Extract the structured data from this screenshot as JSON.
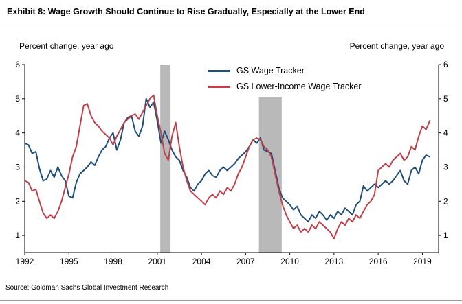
{
  "header": {
    "title": "Exhibit 8: Wage Growth Should Continue to Rise Gradually, Especially at the Lower End"
  },
  "footer": {
    "source": "Source: Goldman Sachs Global Investment Research"
  },
  "chart_data": {
    "type": "line",
    "title": "Exhibit 8: Wage Growth Should Continue to Rise Gradually, Especially at the Lower End",
    "ylabel_left": "Percent change, year ago",
    "ylabel_right": "Percent change, year ago",
    "x_start": 1992.0,
    "x_step": 0.25,
    "xlim": [
      1992,
      2020.1
    ],
    "ylim": [
      0.5,
      6
    ],
    "xticks": [
      1992,
      1995,
      1998,
      2001,
      2004,
      2007,
      2010,
      2013,
      2016,
      2019
    ],
    "yticks": [
      1,
      2,
      3,
      4,
      5,
      6
    ],
    "grid": false,
    "legend_position": "top-center",
    "recession_color": "#b9b9b9",
    "recessions": [
      {
        "x0": 2001.2,
        "x1": 2001.9,
        "ytop": 6.0
      },
      {
        "x0": 2007.9,
        "x1": 2009.45,
        "ytop": 5.05
      }
    ],
    "series": [
      {
        "name": "GS Wage Tracker",
        "color": "#1f4e79",
        "values": [
          3.7,
          3.65,
          3.4,
          3.45,
          2.95,
          2.6,
          2.65,
          2.9,
          2.7,
          3.0,
          2.75,
          2.6,
          2.15,
          2.1,
          2.55,
          2.8,
          2.9,
          3.0,
          3.15,
          3.05,
          3.3,
          3.5,
          3.6,
          3.85,
          4.0,
          3.5,
          3.8,
          4.3,
          4.45,
          4.5,
          4.05,
          3.9,
          4.2,
          5.0,
          4.75,
          4.9,
          4.35,
          3.7,
          4.05,
          3.8,
          3.5,
          3.3,
          3.2,
          2.9,
          2.7,
          2.4,
          2.3,
          2.5,
          2.6,
          2.8,
          2.9,
          2.75,
          2.7,
          2.9,
          3.0,
          2.9,
          3.0,
          3.1,
          3.25,
          3.35,
          3.45,
          3.6,
          3.8,
          3.7,
          3.85,
          3.5,
          3.45,
          3.4,
          2.9,
          2.4,
          2.1,
          2.0,
          1.9,
          1.75,
          1.85,
          1.6,
          1.5,
          1.4,
          1.6,
          1.5,
          1.7,
          1.6,
          1.45,
          1.6,
          1.5,
          1.7,
          1.6,
          1.8,
          1.7,
          1.6,
          1.9,
          2.0,
          2.45,
          2.3,
          2.4,
          2.5,
          2.4,
          2.5,
          2.6,
          2.5,
          2.6,
          2.75,
          2.9,
          2.6,
          2.5,
          2.9,
          3.0,
          2.8,
          3.2,
          3.35,
          3.3
        ]
      },
      {
        "name": "GS Lower-Income Wage Tracker",
        "color": "#c0404a",
        "values": [
          2.6,
          2.55,
          2.3,
          2.35,
          2.0,
          1.65,
          1.5,
          1.6,
          1.5,
          1.7,
          2.0,
          2.4,
          2.8,
          3.3,
          3.6,
          4.2,
          4.8,
          4.85,
          4.5,
          4.3,
          4.2,
          4.05,
          3.95,
          3.85,
          3.65,
          3.9,
          4.1,
          4.3,
          4.4,
          4.5,
          4.55,
          4.4,
          4.6,
          4.8,
          5.0,
          5.1,
          4.5,
          4.0,
          3.4,
          3.2,
          3.9,
          4.3,
          3.6,
          3.0,
          2.6,
          2.3,
          2.2,
          2.1,
          2.0,
          1.9,
          2.1,
          2.2,
          2.1,
          2.3,
          2.2,
          2.4,
          2.3,
          2.5,
          2.8,
          3.0,
          3.3,
          3.6,
          3.8,
          3.85,
          3.8,
          3.6,
          3.5,
          3.3,
          2.8,
          2.3,
          1.9,
          1.6,
          1.4,
          1.2,
          1.3,
          1.1,
          1.2,
          1.1,
          1.3,
          1.2,
          1.4,
          1.3,
          1.2,
          1.1,
          0.9,
          1.2,
          1.4,
          1.3,
          1.5,
          1.4,
          1.6,
          1.5,
          1.7,
          1.9,
          2.0,
          2.2,
          2.9,
          3.0,
          3.1,
          3.0,
          3.2,
          3.3,
          3.4,
          3.2,
          3.3,
          3.6,
          3.5,
          3.9,
          4.2,
          4.1,
          4.35
        ]
      }
    ]
  }
}
